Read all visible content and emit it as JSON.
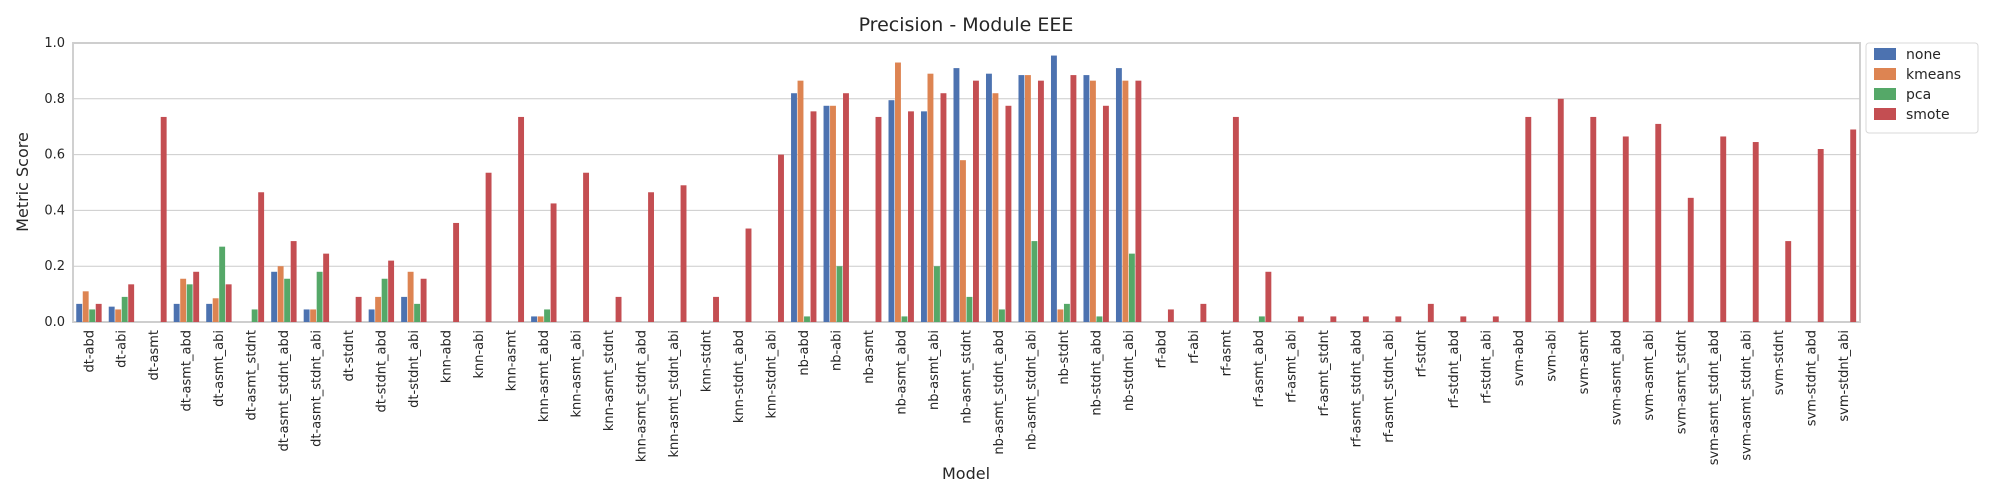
{
  "chart_data": {
    "type": "bar",
    "title": "Precision - Module EEE",
    "xlabel": "Model",
    "ylabel": "Metric Score",
    "ylim": [
      0,
      1.0
    ],
    "yticks": [
      0.0,
      0.2,
      0.4,
      0.6,
      0.8,
      1.0
    ],
    "ytick_labels": [
      "0.0",
      "0.2",
      "0.4",
      "0.6",
      "0.8",
      "1.0"
    ],
    "grid": true,
    "legend_position": "outside-top-right",
    "categories": [
      "dt-abd",
      "dt-abi",
      "dt-asmt",
      "dt-asmt_abd",
      "dt-asmt_abi",
      "dt-asmt_stdnt",
      "dt-asmt_stdnt_abd",
      "dt-asmt_stdnt_abi",
      "dt-stdnt",
      "dt-stdnt_abd",
      "dt-stdnt_abi",
      "knn-abd",
      "knn-abi",
      "knn-asmt",
      "knn-asmt_abd",
      "knn-asmt_abi",
      "knn-asmt_stdnt",
      "knn-asmt_stdnt_abd",
      "knn-asmt_stdnt_abi",
      "knn-stdnt",
      "knn-stdnt_abd",
      "knn-stdnt_abi",
      "nb-abd",
      "nb-abi",
      "nb-asmt",
      "nb-asmt_abd",
      "nb-asmt_abi",
      "nb-asmt_stdnt",
      "nb-asmt_stdnt_abd",
      "nb-asmt_stdnt_abi",
      "nb-stdnt",
      "nb-stdnt_abd",
      "nb-stdnt_abi",
      "rf-abd",
      "rf-abi",
      "rf-asmt",
      "rf-asmt_abd",
      "rf-asmt_abi",
      "rf-asmt_stdnt",
      "rf-asmt_stdnt_abd",
      "rf-asmt_stdnt_abi",
      "rf-stdnt",
      "rf-stdnt_abd",
      "rf-stdnt_abi",
      "svm-abd",
      "svm-abi",
      "svm-asmt",
      "svm-asmt_abd",
      "svm-asmt_abi",
      "svm-asmt_stdnt",
      "svm-asmt_stdnt_abd",
      "svm-asmt_stdnt_abi",
      "svm-stdnt",
      "svm-stdnt_abd",
      "svm-stdnt_abi"
    ],
    "series": [
      {
        "name": "none",
        "color": "#4c72b0",
        "values": [
          0.065,
          0.055,
          0,
          0.065,
          0.065,
          0,
          0.18,
          0.045,
          0,
          0.045,
          0.09,
          0,
          0,
          0,
          0.02,
          0,
          0,
          0,
          0,
          0,
          0,
          0,
          0.82,
          0.775,
          0,
          0.795,
          0.755,
          0.91,
          0.89,
          0.885,
          0.955,
          0.885,
          0.91,
          0,
          0,
          0,
          0,
          0,
          0,
          0,
          0,
          0,
          0,
          0,
          0,
          0,
          0,
          0,
          0,
          0,
          0,
          0,
          0,
          0,
          0
        ]
      },
      {
        "name": "kmeans",
        "color": "#dd8452",
        "values": [
          0.11,
          0.045,
          0,
          0.155,
          0.085,
          0,
          0.2,
          0.045,
          0,
          0.09,
          0.18,
          0,
          0,
          0,
          0.02,
          0,
          0,
          0,
          0,
          0,
          0,
          0,
          0.865,
          0.775,
          0,
          0.93,
          0.89,
          0.58,
          0.82,
          0.885,
          0.045,
          0.865,
          0.865,
          0,
          0,
          0,
          0,
          0,
          0,
          0,
          0,
          0,
          0,
          0,
          0,
          0,
          0,
          0,
          0,
          0,
          0,
          0,
          0,
          0,
          0
        ]
      },
      {
        "name": "pca",
        "color": "#55a868",
        "values": [
          0.045,
          0.09,
          0,
          0.135,
          0.27,
          0.045,
          0.155,
          0.18,
          0,
          0.155,
          0.065,
          0,
          0,
          0,
          0.045,
          0,
          0,
          0,
          0,
          0,
          0,
          0,
          0.02,
          0.2,
          0,
          0.02,
          0.2,
          0.09,
          0.045,
          0.29,
          0.065,
          0.02,
          0.245,
          0,
          0,
          0,
          0.02,
          0,
          0,
          0,
          0,
          0,
          0,
          0,
          0,
          0,
          0,
          0,
          0,
          0,
          0,
          0,
          0,
          0,
          0
        ]
      },
      {
        "name": "smote",
        "color": "#c44e52",
        "values": [
          0.065,
          0.135,
          0.735,
          0.18,
          0.135,
          0.465,
          0.29,
          0.245,
          0.09,
          0.22,
          0.155,
          0.355,
          0.535,
          0.735,
          0.425,
          0.535,
          0.09,
          0.465,
          0.49,
          0.09,
          0.335,
          0.6,
          0.755,
          0.82,
          0.735,
          0.755,
          0.82,
          0.865,
          0.775,
          0.865,
          0.885,
          0.775,
          0.865,
          0.045,
          0.065,
          0.735,
          0.18,
          0.02,
          0.02,
          0.02,
          0.02,
          0.065,
          0.02,
          0.02,
          0.735,
          0.8,
          0.735,
          0.665,
          0.71,
          0.445,
          0.665,
          0.645,
          0.29,
          0.62,
          0.69
        ]
      }
    ]
  }
}
